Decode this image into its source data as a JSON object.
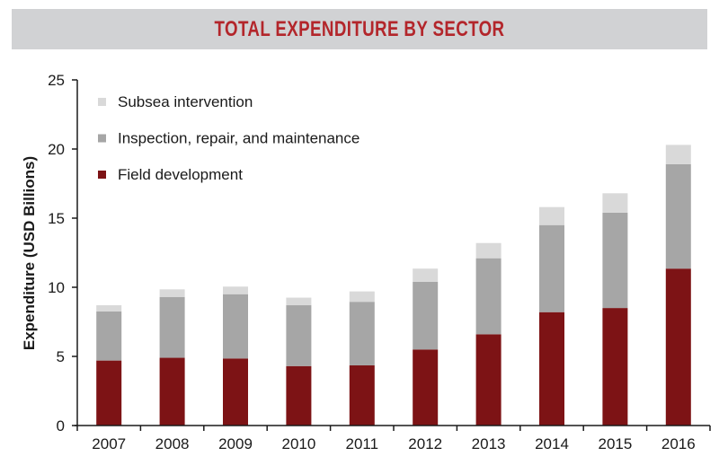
{
  "title": "TOTAL EXPENDITURE BY SECTOR",
  "colors": {
    "title_bg": "#d1d2d4",
    "title_text": "#b3262b",
    "axis": "#1a1a1a"
  },
  "chart_data": {
    "type": "bar",
    "stacked": true,
    "title": "TOTAL EXPENDITURE BY SECTOR",
    "xlabel": "",
    "ylabel": "Expenditure (USD Billions)",
    "ylim": [
      0,
      25
    ],
    "yticks": [
      0,
      5,
      10,
      15,
      20,
      25
    ],
    "grid": false,
    "legend_position": "top-left",
    "categories": [
      "2007",
      "2008",
      "2009",
      "2010",
      "2011",
      "2012",
      "2013",
      "2014",
      "2015",
      "2016"
    ],
    "series": [
      {
        "name": "Field development",
        "color": "#7d1315",
        "values": [
          4.7,
          4.9,
          4.85,
          4.3,
          4.35,
          5.5,
          6.6,
          8.2,
          8.5,
          11.35
        ]
      },
      {
        "name": "Inspection, repair, and maintenance",
        "color": "#a6a6a6",
        "values": [
          3.55,
          4.4,
          4.65,
          4.4,
          4.6,
          4.9,
          5.5,
          6.3,
          6.9,
          7.55
        ]
      },
      {
        "name": "Subsea intervention",
        "color": "#d9d9d9",
        "values": [
          0.45,
          0.55,
          0.55,
          0.55,
          0.75,
          0.95,
          1.1,
          1.3,
          1.4,
          1.4
        ]
      }
    ],
    "legend_order": [
      "Subsea intervention",
      "Inspection, repair, and maintenance",
      "Field development"
    ]
  }
}
